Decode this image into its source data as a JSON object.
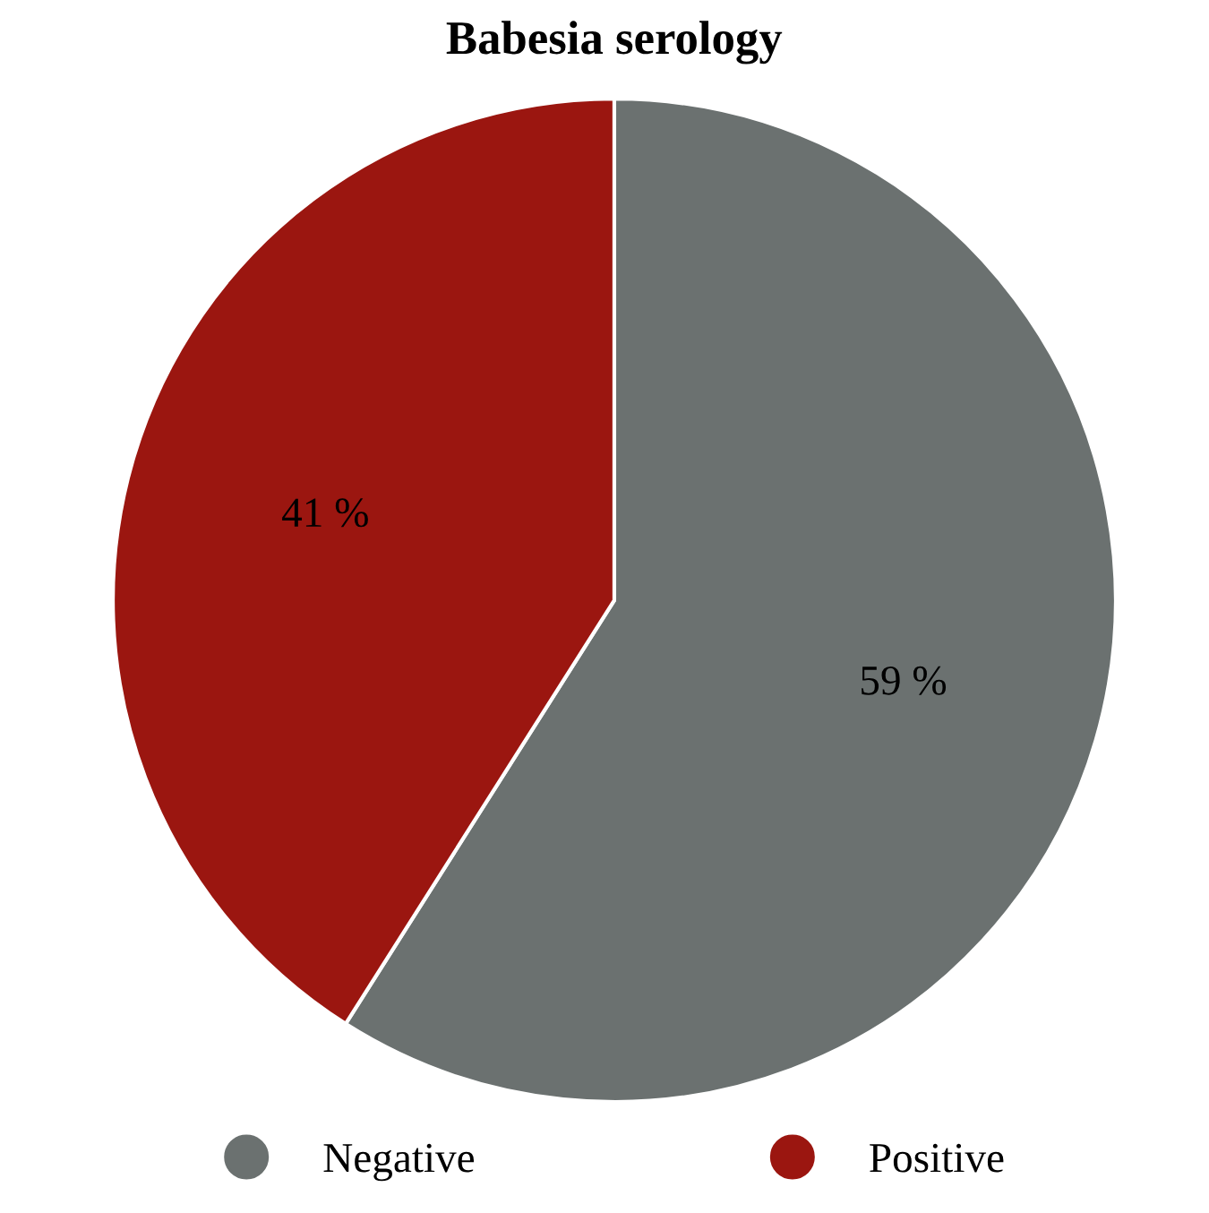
{
  "chart_data": {
    "type": "pie",
    "title": "Babesia serology",
    "categories": [
      "Negative",
      "Positive"
    ],
    "values": [
      59,
      41
    ],
    "colors": [
      "#6b7170",
      "#9b1610"
    ],
    "value_labels": [
      "59 %",
      "41 %"
    ],
    "legend": "bottom"
  }
}
